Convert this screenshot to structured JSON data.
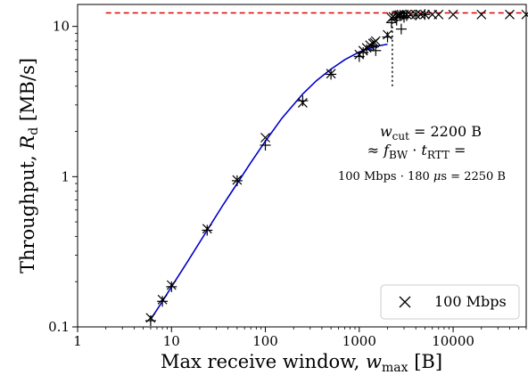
{
  "chart_data": {
    "type": "scatter",
    "x_scale": "log",
    "y_scale": "log",
    "xlim": [
      1,
      60000
    ],
    "ylim": [
      0.1,
      14
    ],
    "xticks": [
      1,
      10,
      100,
      1000,
      10000
    ],
    "xtick_labels": [
      "1",
      "10",
      "100",
      "1000",
      "10000"
    ],
    "yticks": [
      0.1,
      1,
      10
    ],
    "ytick_labels": [
      "0.1",
      "1",
      "10"
    ],
    "xlabel": {
      "main": "Max receive window, ",
      "var": "w",
      "sub": "max",
      "unit": " [B]"
    },
    "ylabel": {
      "main": "Throughput, ",
      "var": "R",
      "sub": "d",
      "unit": " [MB/s]"
    },
    "grid": false,
    "legend": {
      "placement": "bottom-right",
      "entries": [
        {
          "marker": "x",
          "label": "100 Mbps"
        }
      ]
    },
    "series": [
      {
        "name": "100 Mbps",
        "marker": "x",
        "color": "#000000",
        "x": [
          6,
          8,
          10,
          24,
          50,
          100,
          250,
          500,
          1000,
          1100,
          1200,
          1300,
          1400,
          1450,
          1500,
          2000,
          2200,
          2300,
          2500,
          2600,
          2700,
          2800,
          3000,
          3200,
          3500,
          4000,
          4500,
          5000,
          6000,
          7000,
          10000,
          20000,
          40000,
          60000
        ],
        "y": [
          0.115,
          0.152,
          0.19,
          0.45,
          0.95,
          1.82,
          3.1,
          4.85,
          6.5,
          6.9,
          7.2,
          7.5,
          7.7,
          7.8,
          8.0,
          8.8,
          11.4,
          11.6,
          11.8,
          11.9,
          11.9,
          12.0,
          12.0,
          12.0,
          12.0,
          12.0,
          12.0,
          12.0,
          12.0,
          12.0,
          12.0,
          12.0,
          12.0,
          12.0
        ]
      },
      {
        "marker": "+",
        "color": "#000000",
        "x": [
          6,
          8,
          10,
          24,
          50,
          100,
          250,
          500,
          1000,
          1100,
          1200,
          1400,
          1500,
          2000,
          2200,
          2500,
          2800,
          3000,
          3200,
          4000,
          5000
        ],
        "y": [
          0.11,
          0.148,
          0.185,
          0.44,
          0.94,
          1.62,
          3.2,
          4.8,
          6.3,
          6.7,
          7.0,
          7.4,
          6.9,
          8.5,
          10.6,
          11.0,
          9.6,
          11.5,
          11.8,
          11.9,
          12.0
        ]
      }
    ],
    "fit_curve": {
      "color": "#0000cc",
      "x": [
        6,
        8,
        10,
        15,
        24,
        35,
        50,
        70,
        100,
        150,
        250,
        350,
        500,
        700,
        1000,
        1300,
        1600,
        2000
      ],
      "y": [
        0.112,
        0.148,
        0.185,
        0.275,
        0.44,
        0.64,
        0.9,
        1.24,
        1.72,
        2.45,
        3.55,
        4.35,
        5.2,
        6.0,
        6.75,
        7.15,
        7.42,
        7.62
      ]
    },
    "reference_line": {
      "y": 12.3,
      "x_start": 2,
      "x_end": 60000,
      "style": "dashed",
      "color": "#dd0000"
    },
    "cutoff_line": {
      "x": 2250,
      "y_start": 4.0,
      "y_end": 12.3,
      "style": "dotted",
      "color": "#000000"
    },
    "annotation": {
      "line1": {
        "var": "w",
        "sub": "cut",
        "rest": " = 2200 B"
      },
      "line2": {
        "prefix": "≈ ",
        "var1": "f",
        "sub1": "BW",
        "dot": " · ",
        "var2": "t",
        "sub2": "RTT",
        "suffix": " ="
      },
      "line3": {
        "pre": "100 Mbps · 180 ",
        "mu": "μ",
        "post": "s = 2250 B"
      }
    }
  }
}
